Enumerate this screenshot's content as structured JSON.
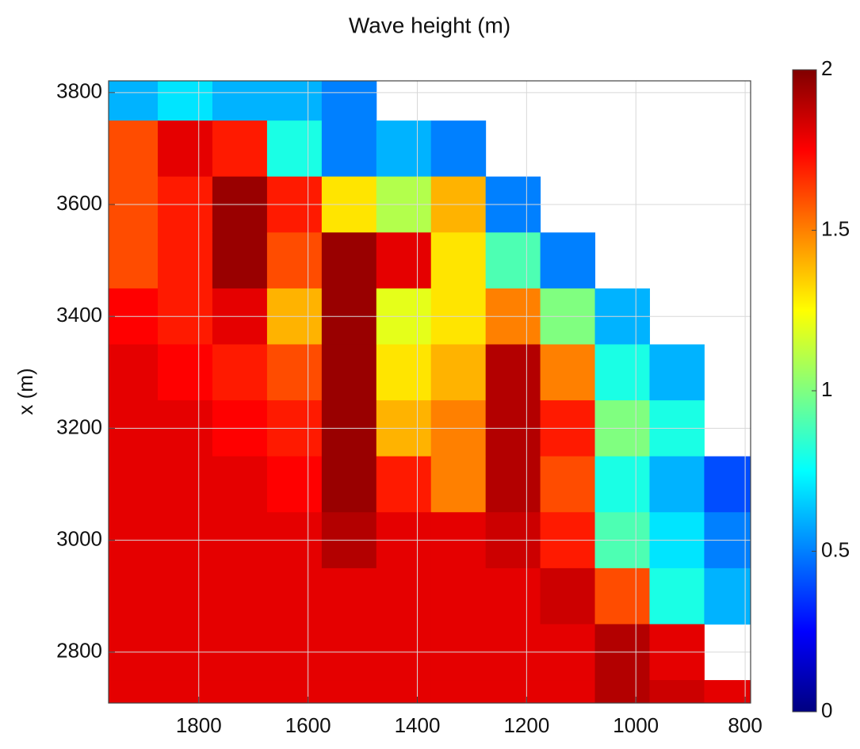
{
  "chart_data": {
    "type": "heatmap",
    "title": "Wave height (m)",
    "y_label": "x (m)",
    "x": [
      1925,
      1825,
      1725,
      1625,
      1525,
      1425,
      1325,
      1225,
      1125,
      1025,
      925,
      825
    ],
    "y": [
      3800,
      3700,
      3600,
      3500,
      3400,
      3300,
      3200,
      3100,
      3000,
      2900,
      2800,
      2700
    ],
    "z": [
      [
        0.6,
        0.7,
        0.6,
        0.6,
        0.5,
        null,
        null,
        null,
        null,
        null,
        null,
        null
      ],
      [
        1.6,
        1.8,
        1.7,
        0.8,
        0.5,
        0.6,
        0.5,
        null,
        null,
        null,
        null,
        null
      ],
      [
        1.6,
        1.7,
        1.95,
        1.7,
        1.3,
        1.1,
        1.4,
        0.5,
        null,
        null,
        null,
        null
      ],
      [
        1.6,
        1.7,
        1.95,
        1.6,
        1.95,
        1.8,
        1.3,
        0.9,
        0.5,
        null,
        null,
        null
      ],
      [
        1.75,
        1.7,
        1.8,
        1.4,
        1.95,
        1.2,
        1.3,
        1.5,
        1.0,
        0.6,
        null,
        null
      ],
      [
        1.8,
        1.75,
        1.7,
        1.6,
        1.95,
        1.3,
        1.4,
        1.9,
        1.5,
        0.8,
        0.6,
        null
      ],
      [
        1.8,
        1.8,
        1.75,
        1.7,
        1.95,
        1.4,
        1.5,
        1.9,
        1.7,
        1.0,
        0.8,
        null
      ],
      [
        1.8,
        1.8,
        1.8,
        1.75,
        1.95,
        1.7,
        1.5,
        1.9,
        1.6,
        0.8,
        0.6,
        0.4
      ],
      [
        1.8,
        1.8,
        1.8,
        1.8,
        1.9,
        1.8,
        1.8,
        1.85,
        1.7,
        0.9,
        0.7,
        0.5
      ],
      [
        1.8,
        1.8,
        1.8,
        1.8,
        1.8,
        1.8,
        1.8,
        1.8,
        1.85,
        1.6,
        0.8,
        0.6
      ],
      [
        1.8,
        1.8,
        1.8,
        1.8,
        1.8,
        1.8,
        1.8,
        1.8,
        1.8,
        1.9,
        1.8,
        null
      ],
      [
        1.8,
        1.8,
        1.8,
        1.8,
        1.8,
        1.8,
        1.8,
        1.8,
        1.8,
        1.9,
        1.85,
        1.8
      ]
    ],
    "xlim": [
      1965,
      790
    ],
    "ylim": [
      2709,
      3821
    ],
    "xticks": [
      1800,
      1600,
      1400,
      1200,
      1000,
      800
    ],
    "yticks": [
      2800,
      3000,
      3200,
      3400,
      3600,
      3800
    ],
    "zlim": [
      0,
      2
    ],
    "zticks": [
      0,
      0.5,
      1,
      1.5,
      2
    ],
    "colormap": "jet",
    "grid": true
  }
}
